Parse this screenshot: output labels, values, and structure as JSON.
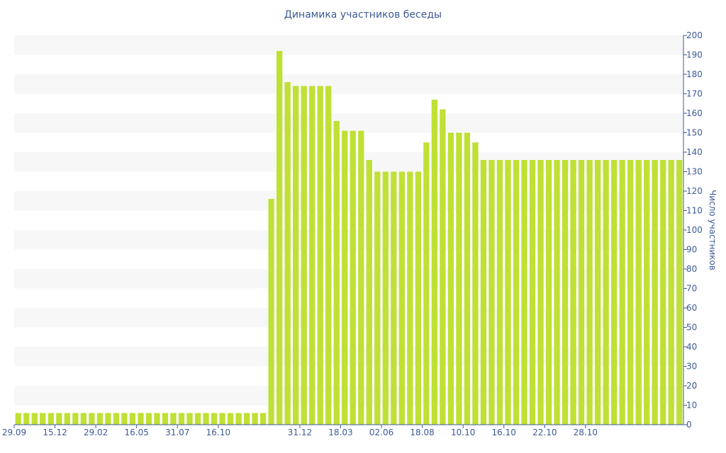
{
  "chart_data": {
    "type": "bar",
    "title": "Динамика участников беседы",
    "xlabel": "",
    "ylabel": "Число участников",
    "ylim": [
      0,
      200
    ],
    "y_ticks": [
      0,
      10,
      20,
      30,
      40,
      50,
      60,
      70,
      80,
      90,
      100,
      110,
      120,
      130,
      140,
      150,
      160,
      170,
      180,
      190,
      200
    ],
    "x_tick_labels": [
      "29.09",
      "15.12",
      "29.02",
      "16.05",
      "31.07",
      "16.10",
      "31.12",
      "18.03",
      "02.06",
      "18.08",
      "10.10",
      "16.10",
      "22.10",
      "28.10"
    ],
    "y_axis_position": "right",
    "grid": "horizontal alternating bands",
    "bar_color": "#bfe034",
    "axis_color": "#3d5a96",
    "values": [
      6,
      6,
      6,
      6,
      6,
      6,
      6,
      6,
      6,
      6,
      6,
      6,
      6,
      6,
      6,
      6,
      6,
      6,
      6,
      6,
      6,
      6,
      6,
      6,
      6,
      6,
      6,
      6,
      6,
      6,
      6,
      116,
      192,
      176,
      174,
      174,
      174,
      174,
      174,
      156,
      151,
      151,
      151,
      136,
      130,
      130,
      130,
      130,
      130,
      130,
      145,
      167,
      162,
      150,
      150,
      150,
      145,
      136,
      136,
      136,
      136,
      136,
      136,
      136,
      136,
      136,
      136,
      136,
      136,
      136,
      136,
      136,
      136,
      136,
      136,
      136,
      136,
      136,
      136,
      136,
      136,
      136
    ]
  }
}
